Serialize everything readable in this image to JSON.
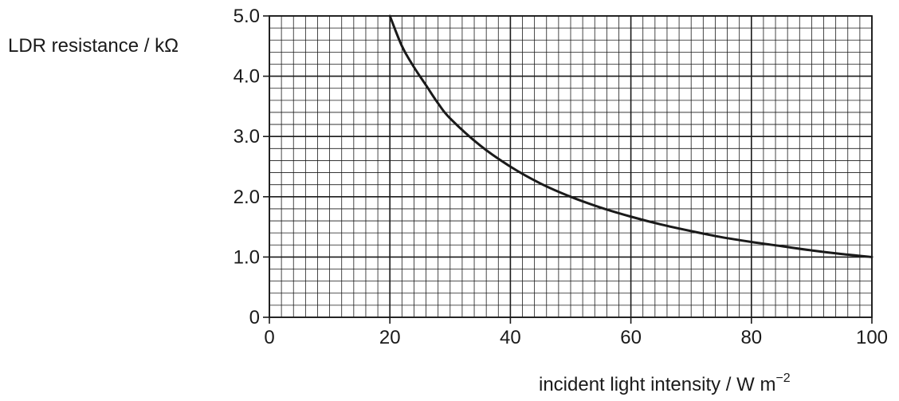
{
  "chart_data": {
    "type": "line",
    "title": "",
    "ylabel": "LDR resistance / kΩ",
    "xlabel_main": "incident light intensity / W m",
    "xlabel_sup": "−2",
    "xlim": [
      0,
      100
    ],
    "ylim": [
      0,
      5
    ],
    "x_ticks": [
      0,
      20,
      40,
      60,
      80,
      100
    ],
    "x_tick_labels": [
      "0",
      "20",
      "40",
      "60",
      "80",
      "100"
    ],
    "y_ticks": [
      0,
      1,
      2,
      3,
      4,
      5
    ],
    "y_tick_labels": [
      "0",
      "1.0",
      "2.0",
      "3.0",
      "4.0",
      "5.0"
    ],
    "grid": true,
    "grid_minor_x": 2,
    "grid_minor_y": 0.2,
    "series": [
      {
        "x": [
          20,
          22,
          24,
          26,
          28,
          30,
          35,
          40,
          45,
          50,
          55,
          60,
          65,
          70,
          75,
          80,
          85,
          90,
          95,
          100
        ],
        "y": [
          5.0,
          4.5,
          4.15,
          3.85,
          3.55,
          3.3,
          2.85,
          2.5,
          2.22,
          2.0,
          1.82,
          1.67,
          1.54,
          1.43,
          1.33,
          1.25,
          1.18,
          1.11,
          1.05,
          1.0
        ]
      }
    ],
    "colors": {
      "line": "#1a1a1a",
      "grid": "#1a1a1a"
    }
  }
}
